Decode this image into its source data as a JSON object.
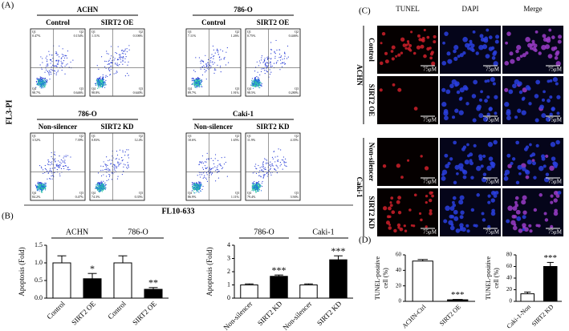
{
  "panel_labels": [
    "(A)",
    "(B)",
    "(C)",
    "(D)"
  ],
  "flow": {
    "y_label": "FL3-PI",
    "x_label": "FL10-633",
    "rows": [
      {
        "groups": [
          "ACHN",
          "786-O"
        ],
        "plots": [
          {
            "title": "Control",
            "quadrants": [
              {
                "q": "Q1",
                "pct": "0.47%"
              },
              {
                "q": "Q2",
                "pct": "0.154%"
              },
              {
                "q": "Q3",
                "pct": "0.646%"
              },
              {
                "q": "Q4",
                "pct": "98.7%"
              }
            ]
          },
          {
            "title": "SIRT2 OE",
            "quadrants": [
              {
                "q": "Q1",
                "pct": "1.11%"
              },
              {
                "q": "Q2",
                "pct": "0.106%"
              },
              {
                "q": "Q3",
                "pct": "0.640%"
              },
              {
                "q": "Q4",
                "pct": "98.8%"
              }
            ]
          },
          {
            "title": "Control",
            "quadrants": [
              {
                "q": "Q1",
                "pct": "7.11%"
              },
              {
                "q": "Q2",
                "pct": "1.26%"
              },
              {
                "q": "Q3",
                "pct": "1.91%"
              },
              {
                "q": "Q4",
                "pct": "89.7%"
              }
            ]
          },
          {
            "title": "SIRT2 OE",
            "quadrants": [
              {
                "q": "Q1",
                "pct": "0.75%"
              },
              {
                "q": "Q2",
                "pct": "0.446%"
              },
              {
                "q": "Q3",
                "pct": "0.280%"
              },
              {
                "q": "Q4",
                "pct": "98.5%"
              }
            ]
          }
        ]
      },
      {
        "groups": [
          "786-O",
          "Caki-1"
        ],
        "plots": [
          {
            "title": "Non-silencer",
            "quadrants": [
              {
                "q": "Q1",
                "pct": "3.52%"
              },
              {
                "q": "Q2",
                "pct": "7.39%"
              },
              {
                "q": "Q3",
                "pct": "0.47%"
              },
              {
                "q": "Q4",
                "pct": "84.2%"
              }
            ]
          },
          {
            "title": "SIRT2 KD",
            "quadrants": [
              {
                "q": "Q1",
                "pct": "0.83%"
              },
              {
                "q": "Q2",
                "pct": "12.4%"
              },
              {
                "q": "Q3",
                "pct": "0.35%"
              },
              {
                "q": "Q4",
                "pct": "74.3%"
              }
            ]
          },
          {
            "title": "Non-silencer",
            "quadrants": [
              {
                "q": "Q1",
                "pct": "10.6%"
              },
              {
                "q": "Q2",
                "pct": "1.65%"
              },
              {
                "q": "Q3",
                "pct": "1.11%"
              },
              {
                "q": "Q4",
                "pct": "86.9%"
              }
            ]
          },
          {
            "title": "SIRT2 KD",
            "quadrants": [
              {
                "q": "Q1",
                "pct": "11.9%"
              },
              {
                "q": "Q2",
                "pct": "4.35%"
              },
              {
                "q": "Q3",
                "pct": "3.94%"
              },
              {
                "q": "Q4",
                "pct": "79.4%"
              }
            ]
          }
        ]
      }
    ]
  },
  "tunel": {
    "columns": [
      "TUNEL",
      "DAPI",
      "Merge"
    ],
    "groups": [
      "ACHN",
      "Caki-1"
    ],
    "rows": [
      "Control",
      "SIRT2 OE",
      "Non-silencer",
      "SIRT2 KD"
    ],
    "scale_bar": "75μM"
  },
  "chart_data": [
    {
      "type": "bar",
      "y_label": "Apoptosis (Fold)",
      "groups": [
        "ACHN",
        "786-O"
      ],
      "categories": [
        "Control",
        "SIRT2 OE",
        "Control",
        "SIRT2 OE"
      ],
      "values": [
        1.0,
        0.55,
        1.0,
        0.25
      ],
      "errors": [
        0.2,
        0.15,
        0.2,
        0.05
      ],
      "annotations": [
        null,
        "*",
        null,
        "**"
      ],
      "colors": [
        "#ffffff",
        "#000000",
        "#ffffff",
        "#000000"
      ],
      "ylim": [
        0,
        1.5
      ],
      "yticks": [
        {
          "value": 0,
          "label": "0.0"
        },
        0.5,
        {
          "value": 1,
          "label": "1.0"
        },
        1.5
      ]
    },
    {
      "type": "bar",
      "y_label": "Apoptosis (Fold)",
      "groups": [
        "786-O",
        "Caki-1"
      ],
      "categories": [
        "Non-silencer",
        "SIRT2 KD",
        "Non-silencer",
        "SIRT2 KD"
      ],
      "values": [
        1.0,
        1.65,
        1.0,
        2.9
      ],
      "errors": [
        0.08,
        0.1,
        0.08,
        0.3
      ],
      "annotations": [
        null,
        "***",
        null,
        "***"
      ],
      "colors": [
        "#ffffff",
        "#000000",
        "#ffffff",
        "#000000"
      ],
      "ylim": [
        0,
        4
      ],
      "yticks": [
        0,
        1,
        2,
        3,
        4
      ]
    },
    {
      "type": "bar",
      "y_label": [
        "TUNEL-positive",
        "cell (%)"
      ],
      "categories": [
        "ACHN-Ctrl",
        "SIRT2 OE"
      ],
      "values": [
        52,
        2
      ],
      "errors": [
        2,
        0.5
      ],
      "annotations": [
        null,
        "***"
      ],
      "colors": [
        "#ffffff",
        "#000000"
      ],
      "ylim": [
        0,
        60
      ],
      "yticks": [
        0,
        20,
        40,
        60
      ]
    },
    {
      "type": "bar",
      "y_label": [
        "TUNEL-positive",
        "cell (%)"
      ],
      "categories": [
        "Caki-1-Non",
        "SIRT2 KD"
      ],
      "values": [
        13,
        60
      ],
      "errors": [
        3,
        7
      ],
      "annotations": [
        null,
        "***"
      ],
      "colors": [
        "#ffffff",
        "#000000"
      ],
      "ylim": [
        0,
        80
      ],
      "yticks": [
        0,
        20,
        40,
        60,
        80
      ]
    }
  ]
}
